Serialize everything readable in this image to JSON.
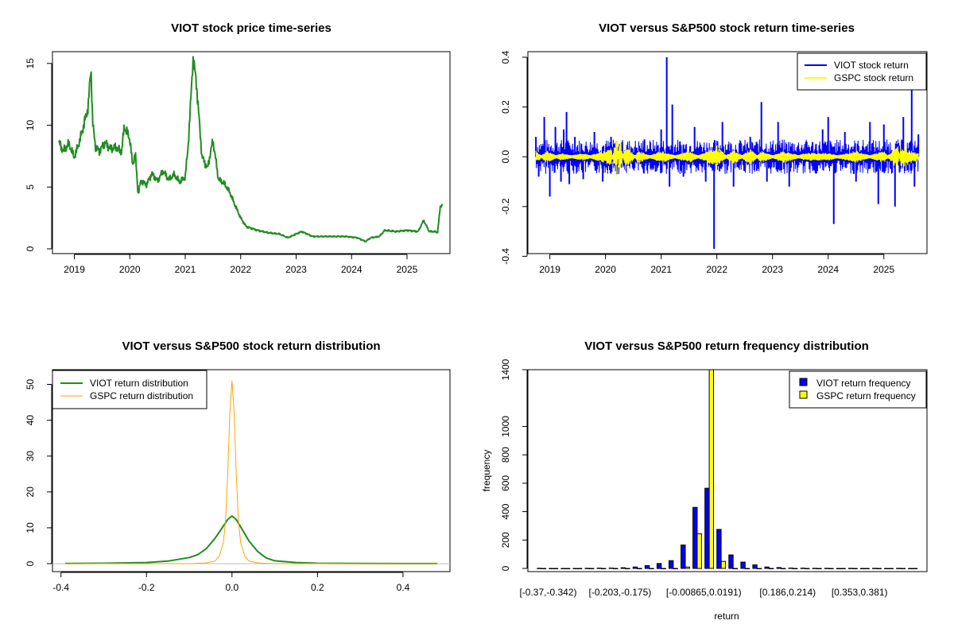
{
  "colors": {
    "viot": "#0000ff",
    "gspc": "#ffff00",
    "price": "#228b22",
    "density_viot": "#228b22",
    "density_gspc": "#ffa500",
    "zero": "#bebebe"
  },
  "chart_data": [
    {
      "type": "line",
      "title": "VIOT stock price time-series",
      "xlabel": "",
      "ylabel": "",
      "xlim": [
        2018.72,
        2025.66
      ],
      "ylim": [
        0,
        15.5
      ],
      "x_ticks": [
        2019,
        2020,
        2021,
        2022,
        2023,
        2024,
        2025
      ],
      "x_tick_labels": [
        "2019",
        "2020",
        "2021",
        "2022",
        "2023",
        "2024",
        "2025"
      ],
      "y_ticks": [
        0,
        5,
        10,
        15
      ],
      "y_tick_labels": [
        "0",
        "5",
        "10",
        "15"
      ],
      "series": [
        {
          "name": "VIOT price",
          "x": [
            2018.72,
            2018.8,
            2018.9,
            2019.0,
            2019.1,
            2019.18,
            2019.25,
            2019.3,
            2019.33,
            2019.38,
            2019.45,
            2019.55,
            2019.65,
            2019.75,
            2019.85,
            2019.9,
            2020.0,
            2020.05,
            2020.1,
            2020.15,
            2020.2,
            2020.3,
            2020.4,
            2020.5,
            2020.6,
            2020.7,
            2020.8,
            2020.9,
            2021.0,
            2021.05,
            2021.1,
            2021.14,
            2021.2,
            2021.3,
            2021.4,
            2021.5,
            2021.6,
            2021.7,
            2021.8,
            2021.9,
            2022.0,
            2022.1,
            2022.3,
            2022.5,
            2022.7,
            2022.85,
            2023.0,
            2023.1,
            2023.3,
            2023.6,
            2023.9,
            2024.1,
            2024.25,
            2024.35,
            2024.5,
            2024.6,
            2024.8,
            2025.0,
            2025.2,
            2025.3,
            2025.4,
            2025.5,
            2025.55,
            2025.6,
            2025.64
          ],
          "values": [
            8.6,
            7.9,
            8.5,
            7.4,
            8.8,
            10.2,
            11.5,
            14.7,
            10.2,
            8.3,
            7.9,
            8.6,
            8.1,
            8.2,
            7.8,
            9.9,
            8.9,
            6.8,
            7.7,
            4.4,
            5.5,
            5.2,
            6.1,
            5.5,
            6.3,
            5.6,
            6.0,
            5.4,
            5.8,
            8.2,
            12.0,
            15.4,
            13.5,
            7.5,
            6.5,
            8.8,
            5.6,
            5.3,
            4.6,
            3.5,
            2.5,
            1.8,
            1.5,
            1.3,
            1.2,
            0.9,
            1.2,
            1.4,
            1.0,
            1.0,
            1.0,
            0.9,
            0.6,
            0.9,
            1.0,
            1.5,
            1.4,
            1.5,
            1.4,
            2.3,
            1.4,
            1.4,
            1.3,
            3.4,
            3.6
          ]
        }
      ]
    },
    {
      "type": "line",
      "title": "VIOT versus S&P500 stock return time-series",
      "xlabel": "",
      "ylabel": "",
      "xlim": [
        2018.72,
        2025.66
      ],
      "ylim": [
        -0.37,
        0.4
      ],
      "x_ticks": [
        2019,
        2020,
        2021,
        2022,
        2023,
        2024,
        2025
      ],
      "x_tick_labels": [
        "2019",
        "2020",
        "2021",
        "2022",
        "2023",
        "2024",
        "2025"
      ],
      "y_ticks": [
        -0.4,
        -0.2,
        0.0,
        0.2,
        0.4
      ],
      "y_tick_labels": [
        "-0.4",
        "-0.2",
        "0.0",
        "0.2",
        "0.4"
      ],
      "legend": {
        "placement": "top-right",
        "entries": [
          "VIOT stock return",
          "GSPC stock return"
        ]
      },
      "series": [
        {
          "name": "VIOT stock return",
          "x": [
            2018.75,
            2018.8,
            2018.9,
            2019.0,
            2019.1,
            2019.2,
            2019.25,
            2019.3,
            2019.35,
            2019.45,
            2019.6,
            2019.8,
            2019.95,
            2020.1,
            2020.2,
            2020.3,
            2020.5,
            2020.7,
            2020.9,
            2021.0,
            2021.1,
            2021.15,
            2021.2,
            2021.4,
            2021.6,
            2021.8,
            2021.95,
            2022.1,
            2022.3,
            2022.6,
            2022.8,
            2022.9,
            2023.1,
            2023.3,
            2023.6,
            2023.9,
            2024.0,
            2024.1,
            2024.3,
            2024.5,
            2024.75,
            2024.9,
            2025.0,
            2025.2,
            2025.35,
            2025.5,
            2025.55,
            2025.62
          ],
          "values": [
            0.08,
            -0.08,
            0.16,
            -0.16,
            0.12,
            -0.1,
            0.11,
            0.18,
            -0.11,
            0.08,
            -0.09,
            0.1,
            -0.1,
            0.08,
            -0.07,
            0.06,
            -0.05,
            0.07,
            -0.06,
            0.11,
            0.4,
            -0.12,
            0.21,
            -0.08,
            0.12,
            -0.1,
            -0.37,
            0.14,
            -0.12,
            0.08,
            0.22,
            -0.1,
            0.14,
            -0.12,
            0.06,
            0.11,
            0.16,
            -0.27,
            0.1,
            -0.1,
            0.14,
            -0.19,
            0.13,
            -0.2,
            0.16,
            0.27,
            -0.12,
            0.09
          ]
        },
        {
          "name": "GSPC stock return",
          "x": [
            2018.75,
            2018.95,
            2019.2,
            2019.6,
            2020.1,
            2020.2,
            2020.25,
            2020.35,
            2020.6,
            2021.0,
            2021.5,
            2022.0,
            2022.3,
            2022.6,
            2022.8,
            2023.2,
            2023.6,
            2024.0,
            2024.5,
            2025.0,
            2025.25,
            2025.3,
            2025.5,
            2025.62
          ],
          "values": [
            0.02,
            -0.02,
            0.01,
            -0.01,
            0.03,
            -0.09,
            0.09,
            -0.05,
            0.02,
            -0.02,
            0.02,
            -0.04,
            0.03,
            -0.03,
            0.02,
            -0.02,
            0.01,
            0.01,
            -0.02,
            0.02,
            -0.05,
            0.04,
            0.02,
            0.01
          ]
        }
      ]
    },
    {
      "type": "line",
      "title": "VIOT versus S&P500 stock return distribution",
      "xlabel": "",
      "ylabel": "",
      "xlim": [
        -0.405,
        0.495
      ],
      "ylim": [
        0,
        51
      ],
      "x_ticks": [
        -0.4,
        -0.2,
        0.0,
        0.2,
        0.4
      ],
      "x_tick_labels": [
        "-0.4",
        "-0.2",
        "0.0",
        "0.2",
        "0.4"
      ],
      "y_ticks": [
        0,
        10,
        20,
        30,
        40,
        50
      ],
      "y_tick_labels": [
        "0",
        "10",
        "20",
        "30",
        "40",
        "50"
      ],
      "legend": {
        "placement": "top-left",
        "entries": [
          "VIOT return distribution",
          "GSPC return distribution"
        ]
      },
      "series": [
        {
          "name": "VIOT return distribution",
          "x": [
            -0.39,
            -0.3,
            -0.2,
            -0.15,
            -0.1,
            -0.08,
            -0.06,
            -0.04,
            -0.02,
            -0.01,
            0.0,
            0.01,
            0.02,
            0.04,
            0.06,
            0.08,
            0.1,
            0.15,
            0.2,
            0.3,
            0.48
          ],
          "values": [
            0.05,
            0.1,
            0.3,
            0.7,
            1.7,
            2.5,
            4.2,
            7.0,
            10.5,
            12.3,
            13.3,
            12.3,
            10.3,
            6.3,
            3.4,
            1.6,
            0.8,
            0.3,
            0.1,
            0.05,
            0.03
          ]
        },
        {
          "name": "GSPC return distribution",
          "x": [
            -0.39,
            -0.1,
            -0.06,
            -0.04,
            -0.03,
            -0.02,
            -0.015,
            -0.01,
            -0.005,
            0.0,
            0.005,
            0.01,
            0.015,
            0.02,
            0.03,
            0.04,
            0.06,
            0.1,
            0.48
          ],
          "values": [
            0.0,
            0.0,
            0.2,
            0.7,
            2.0,
            6.0,
            12.0,
            25.0,
            42.0,
            51.0,
            42.0,
            25.0,
            12.0,
            6.0,
            2.0,
            0.7,
            0.2,
            0.0,
            0.0
          ]
        }
      ]
    },
    {
      "type": "bar",
      "title": "VIOT versus S&P500 return frequency distribution",
      "xlabel": "return",
      "ylabel": "frequency",
      "ylim": [
        0,
        1400
      ],
      "y_ticks": [
        0,
        200,
        400,
        600,
        800,
        1000,
        1400
      ],
      "y_tick_labels": [
        "0",
        "200",
        "400",
        "600",
        "800",
        "1000",
        "1400"
      ],
      "category_tick_labels": [
        "[-0.37,-0.342)",
        "[-0.203,-0.175)",
        "[-0.00865,0.0191)",
        "[0.186,0.214)",
        "[0.353,0.381)"
      ],
      "category_tick_indices": [
        0,
        6,
        13,
        20,
        26
      ],
      "legend": {
        "placement": "top-right",
        "entries": [
          "VIOT return frequency",
          "GSPC return frequency"
        ]
      },
      "series": [
        {
          "name": "VIOT return frequency",
          "values": [
            1,
            0,
            0,
            0,
            1,
            2,
            3,
            5,
            10,
            20,
            35,
            55,
            165,
            430,
            565,
            275,
            95,
            45,
            25,
            10,
            6,
            3,
            2,
            1,
            1,
            0,
            1,
            0,
            1,
            0,
            1,
            0
          ]
        },
        {
          "name": "GSPC return frequency",
          "values": [
            0,
            0,
            0,
            0,
            0,
            0,
            0,
            0,
            0,
            0,
            0,
            0,
            10,
            245,
            1400,
            50,
            0,
            0,
            0,
            0,
            0,
            0,
            0,
            0,
            0,
            0,
            0,
            0,
            0,
            0,
            0,
            0
          ]
        }
      ]
    }
  ]
}
